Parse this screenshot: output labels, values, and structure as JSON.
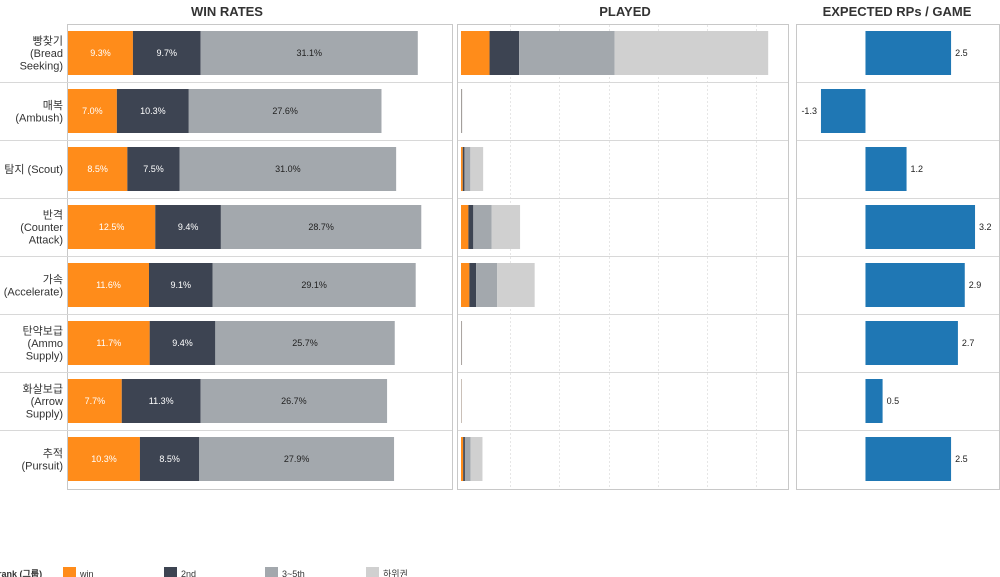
{
  "panels": {
    "win_rates_title": "WIN RATES",
    "played_title": "PLAYED",
    "expected_title": "EXPECTED RPs / GAME"
  },
  "legend": {
    "title": "rank (그룹)",
    "items": [
      {
        "label": "win",
        "color": "#ff8c1a"
      },
      {
        "label": "2nd",
        "color": "#3d4452"
      },
      {
        "label": "3~5th",
        "color": "#a3a8ad"
      },
      {
        "label": "하위권",
        "color": "#d0d0d0"
      }
    ]
  },
  "colors": {
    "win": "#ff8c1a",
    "second": "#3d4452",
    "third_fifth": "#a3a8ad",
    "lower": "#d0d0d0",
    "rp_bar": "#1f77b4",
    "row_separator": "#d8d8d8",
    "grid": "#e6e6e6",
    "panel_border": "#c8c8c8"
  },
  "chart_data": [
    {
      "type": "bar",
      "subtype": "stacked-horizontal",
      "title": "WIN RATES",
      "categories": [
        "빵찾기 (Bread Seeking)",
        "매복 (Ambush)",
        "탐지 (Scout)",
        "반격 (Counter Attack)",
        "가속 (Accelerate)",
        "탄약보급 (Ammo Supply)",
        "화살보급 (Arrow Supply)",
        "추적 (Pursuit)"
      ],
      "category_lines": [
        [
          "빵찾기",
          "(Bread",
          "Seeking)"
        ],
        [
          "매복",
          "(Ambush)"
        ],
        [
          "탐지 (Scout)"
        ],
        [
          "반격",
          "(Counter",
          "Attack)"
        ],
        [
          "가속",
          "(Accelerate)"
        ],
        [
          "탄약보급",
          "(Ammo",
          "Supply)"
        ],
        [
          "화살보급",
          "(Arrow",
          "Supply)"
        ],
        [
          "추적",
          "(Pursuit)"
        ]
      ],
      "series": [
        {
          "name": "win",
          "values": [
            9.3,
            7.0,
            8.5,
            12.5,
            11.6,
            11.7,
            7.7,
            10.3
          ],
          "labels": [
            "9.3%",
            "7.0%",
            "8.5%",
            "12.5%",
            "11.6%",
            "11.7%",
            "7.7%",
            "10.3%"
          ]
        },
        {
          "name": "2nd",
          "values": [
            9.7,
            10.3,
            7.5,
            9.4,
            9.1,
            9.4,
            11.3,
            8.5
          ],
          "labels": [
            "9.7%",
            "10.3%",
            "7.5%",
            "9.4%",
            "9.1%",
            "9.4%",
            "11.3%",
            "8.5%"
          ]
        },
        {
          "name": "3~5th",
          "values": [
            31.1,
            27.6,
            31.0,
            28.7,
            29.1,
            25.7,
            26.7,
            27.9
          ],
          "labels": [
            "31.1%",
            "27.6%",
            "31.0%",
            "28.7%",
            "29.1%",
            "25.7%",
            "26.7%",
            "27.9%"
          ]
        }
      ],
      "xlim": [
        0,
        55
      ]
    },
    {
      "type": "bar",
      "subtype": "stacked-horizontal",
      "title": "PLAYED",
      "categories": [
        "빵찾기 (Bread Seeking)",
        "매복 (Ambush)",
        "탐지 (Scout)",
        "반격 (Counter Attack)",
        "가속 (Accelerate)",
        "탄약보급 (Ammo Supply)",
        "화살보급 (Arrow Supply)",
        "추적 (Pursuit)"
      ],
      "series": [
        {
          "name": "win",
          "values": [
            290,
            2,
            18,
            75,
            85,
            2,
            2,
            22
          ]
        },
        {
          "name": "2nd",
          "values": [
            300,
            3,
            17,
            50,
            68,
            3,
            2,
            18
          ]
        },
        {
          "name": "3~5th",
          "values": [
            970,
            4,
            60,
            185,
            215,
            3,
            2,
            58
          ]
        },
        {
          "name": "하위권",
          "values": [
            1560,
            4,
            130,
            290,
            380,
            3,
            2,
            120
          ]
        }
      ],
      "xlim": [
        0,
        3250
      ],
      "grid": true
    },
    {
      "type": "bar",
      "subtype": "horizontal",
      "title": "EXPECTED RPs / GAME",
      "categories": [
        "빵찾기 (Bread Seeking)",
        "매복 (Ambush)",
        "탐지 (Scout)",
        "반격 (Counter Attack)",
        "가속 (Accelerate)",
        "탄약보급 (Ammo Supply)",
        "화살보급 (Arrow Supply)",
        "추적 (Pursuit)"
      ],
      "values": [
        2.5,
        -1.3,
        1.2,
        3.2,
        2.9,
        2.7,
        0.5,
        2.5
      ],
      "labels": [
        "2.5",
        "-1.3",
        "1.2",
        "3.2",
        "2.9",
        "2.7",
        "0.5",
        "2.5"
      ],
      "xlim": [
        -2.0,
        3.9
      ]
    }
  ]
}
